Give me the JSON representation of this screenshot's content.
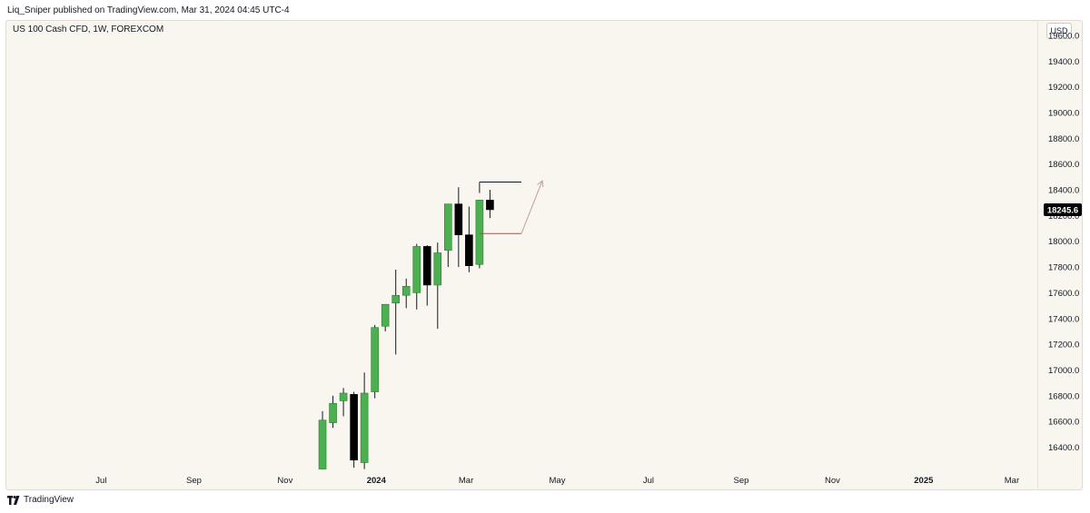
{
  "header": {
    "published": "Liq_Sniper published on TradingView.com, Mar 31, 2024 04:45 UTC-4"
  },
  "symbol": {
    "title": "US 100 Cash CFD, 1W, FOREXCOM"
  },
  "currency": "USD",
  "footer": {
    "brand": "TradingView"
  },
  "colors": {
    "up": "#4caf50",
    "down": "#000000",
    "wick": "#131722",
    "annotation_line": "#131722",
    "level_line": "#e53935",
    "arrow": "#c99a9a",
    "price_tag": "#000000"
  },
  "chart_data": {
    "type": "candlestick",
    "title": "US 100 Cash CFD, 1W, FOREXCOM",
    "interval": "1W",
    "ylim": [
      16220,
      19720
    ],
    "y_ticks": [
      "16400.0",
      "16600.0",
      "16800.0",
      "17000.0",
      "17200.0",
      "17400.0",
      "17600.0",
      "17800.0",
      "18000.0",
      "18200.0",
      "18400.0",
      "18600.0",
      "18800.0",
      "19000.0",
      "19200.0",
      "19400.0",
      "19600.0"
    ],
    "x_ticks": [
      {
        "label": "Jul",
        "date": "2023-07-01",
        "bold": false
      },
      {
        "label": "Sep",
        "date": "2023-09-01",
        "bold": false
      },
      {
        "label": "Nov",
        "date": "2023-11-01",
        "bold": false
      },
      {
        "label": "2024",
        "date": "2024-01-01",
        "bold": true
      },
      {
        "label": "Mar",
        "date": "2024-03-01",
        "bold": false
      },
      {
        "label": "May",
        "date": "2024-05-01",
        "bold": false
      },
      {
        "label": "Jul",
        "date": "2024-07-01",
        "bold": false
      },
      {
        "label": "Sep",
        "date": "2024-09-01",
        "bold": false
      },
      {
        "label": "Nov",
        "date": "2024-11-01",
        "bold": false
      },
      {
        "label": "2025",
        "date": "2025-01-01",
        "bold": true
      },
      {
        "label": "Mar",
        "date": "2025-03-01",
        "bold": false
      }
    ],
    "candles": [
      {
        "date": "2023-11-26",
        "open": 16230,
        "high": 16680,
        "low": 16230,
        "close": 16610
      },
      {
        "date": "2023-12-03",
        "open": 16590,
        "high": 16800,
        "low": 16550,
        "close": 16740
      },
      {
        "date": "2023-12-10",
        "open": 16760,
        "high": 16860,
        "low": 16640,
        "close": 16820
      },
      {
        "date": "2023-12-17",
        "open": 16810,
        "high": 16830,
        "low": 16240,
        "close": 16300
      },
      {
        "date": "2023-12-24",
        "open": 16280,
        "high": 16980,
        "low": 16230,
        "close": 16820
      },
      {
        "date": "2023-12-31",
        "open": 16830,
        "high": 17350,
        "low": 16780,
        "close": 17330
      },
      {
        "date": "2024-01-07",
        "open": 17340,
        "high": 17500,
        "low": 17300,
        "close": 17510
      },
      {
        "date": "2024-01-14",
        "open": 17520,
        "high": 17780,
        "low": 17120,
        "close": 17580
      },
      {
        "date": "2024-01-21",
        "open": 17580,
        "high": 17710,
        "low": 17480,
        "close": 17650
      },
      {
        "date": "2024-01-28",
        "open": 17600,
        "high": 17980,
        "low": 17470,
        "close": 17960
      },
      {
        "date": "2024-02-04",
        "open": 17960,
        "high": 17970,
        "low": 17500,
        "close": 17660
      },
      {
        "date": "2024-02-11",
        "open": 17660,
        "high": 17990,
        "low": 17320,
        "close": 17910
      },
      {
        "date": "2024-02-18",
        "open": 17930,
        "high": 18290,
        "low": 17800,
        "close": 18290
      },
      {
        "date": "2024-02-25",
        "open": 18290,
        "high": 18420,
        "low": 17800,
        "close": 18050
      },
      {
        "date": "2024-03-03",
        "open": 18050,
        "high": 18270,
        "low": 17760,
        "close": 17810
      },
      {
        "date": "2024-03-10",
        "open": 17820,
        "high": 18320,
        "low": 17790,
        "close": 18320
      },
      {
        "date": "2024-03-17",
        "open": 18320,
        "high": 18400,
        "low": 18180,
        "close": 18245.6
      }
    ],
    "last_price": "18245.6",
    "annotations": [
      {
        "type": "horizontal",
        "from": "2024-03-10",
        "to": "2024-04-07",
        "price": 18460
      },
      {
        "type": "horizontal",
        "from": "2024-03-10",
        "to": "2024-04-07",
        "price": 18060
      },
      {
        "type": "arrow",
        "from_date": "2024-04-07",
        "from_price": 18060,
        "to_date": "2024-04-21",
        "to_price": 18470
      }
    ]
  }
}
